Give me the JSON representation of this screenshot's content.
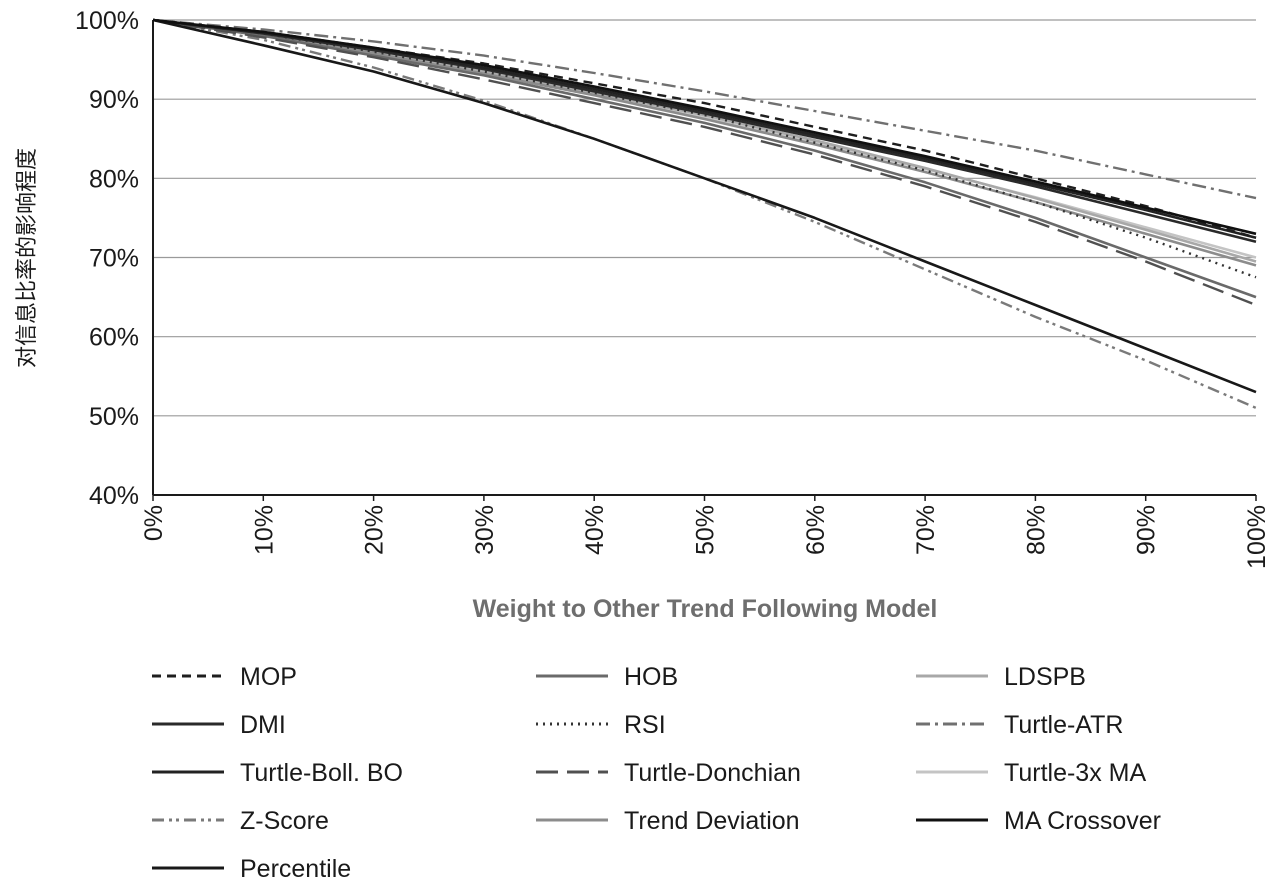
{
  "chart_data": {
    "type": "line",
    "title": "",
    "xlabel": "Weight to Other Trend Following Model",
    "ylabel": "对信息比率的影响程度",
    "x": [
      0,
      10,
      20,
      30,
      40,
      50,
      60,
      70,
      80,
      90,
      100
    ],
    "x_tick_labels": [
      "0%",
      "10%",
      "20%",
      "30%",
      "40%",
      "50%",
      "60%",
      "70%",
      "80%",
      "90%",
      "100%"
    ],
    "y_tick_labels": [
      "100%",
      "90%",
      "80%",
      "70%",
      "60%",
      "50%",
      "40%"
    ],
    "y_ticks": [
      100,
      90,
      80,
      70,
      60,
      50,
      40
    ],
    "xlim": [
      0,
      100
    ],
    "ylim": [
      40,
      100
    ],
    "grid": "horizontal",
    "legend_position": "bottom",
    "series": [
      {
        "name": "MOP",
        "color": "#1e1e1e",
        "dash": "dashed",
        "values": [
          100,
          98.5,
          96.5,
          94.5,
          92,
          89.5,
          86.5,
          83.5,
          80,
          76.5,
          72.5
        ]
      },
      {
        "name": "HOB",
        "color": "#6a6a6a",
        "dash": "solid",
        "values": [
          100,
          98,
          95.5,
          93,
          90,
          87,
          83.5,
          79.5,
          75,
          70,
          65
        ]
      },
      {
        "name": "LDSPB",
        "color": "#a8a8a8",
        "dash": "solid",
        "values": [
          100,
          98.3,
          96,
          93.5,
          90.8,
          88,
          84.8,
          81.3,
          77.5,
          73.5,
          69.5
        ]
      },
      {
        "name": "DMI",
        "color": "#2a2a2a",
        "dash": "solid",
        "values": [
          100,
          98.3,
          96.2,
          93.8,
          91,
          88.2,
          85.2,
          82.2,
          79,
          75.5,
          72
        ]
      },
      {
        "name": "RSI",
        "color": "#333333",
        "dash": "dotted",
        "values": [
          100,
          98.3,
          96,
          93.5,
          90.8,
          88,
          84.5,
          81,
          77,
          72.5,
          67.5
        ]
      },
      {
        "name": "Turtle-ATR",
        "color": "#707070",
        "dash": "dashdot",
        "values": [
          100,
          98.8,
          97.3,
          95.5,
          93.3,
          91,
          88.5,
          86,
          83.5,
          80.5,
          77.5
        ]
      },
      {
        "name": "Turtle-Boll. BO",
        "color": "#222222",
        "dash": "solid",
        "values": [
          100,
          98.4,
          96.4,
          94,
          91.3,
          88.5,
          85.5,
          82.5,
          79.3,
          76,
          72.5
        ]
      },
      {
        "name": "Turtle-Donchian",
        "color": "#505050",
        "dash": "longdash",
        "values": [
          100,
          97.8,
          95.3,
          92.5,
          89.5,
          86.5,
          83,
          79,
          74.5,
          69.5,
          64
        ]
      },
      {
        "name": "Turtle-3x MA",
        "color": "#c4c4c4",
        "dash": "solid",
        "values": [
          100,
          98.3,
          96,
          93.4,
          90.7,
          87.8,
          84.6,
          81.2,
          77.6,
          73.8,
          70
        ]
      },
      {
        "name": "Z-Score",
        "color": "#7a7a7a",
        "dash": "dashdotdot",
        "values": [
          100,
          97.5,
          94,
          89.8,
          85,
          80,
          74.5,
          68.5,
          62.5,
          57,
          51
        ]
      },
      {
        "name": "Trend Deviation",
        "color": "#8c8c8c",
        "dash": "solid",
        "values": [
          100,
          98.2,
          95.8,
          93.2,
          90.5,
          87.5,
          84.3,
          80.8,
          77,
          73,
          69
        ]
      },
      {
        "name": "MA Crossover",
        "color": "#101010",
        "dash": "solid",
        "values": [
          100,
          98.5,
          96.5,
          94.3,
          91.6,
          88.8,
          85.8,
          82.8,
          79.6,
          76.3,
          73
        ]
      },
      {
        "name": "Percentile",
        "color": "#181818",
        "dash": "solid",
        "values": [
          100,
          96.8,
          93.5,
          89.5,
          85,
          80,
          75,
          69.5,
          64,
          58.5,
          53
        ]
      }
    ]
  }
}
